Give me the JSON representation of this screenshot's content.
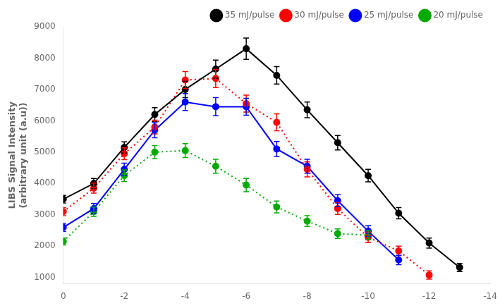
{
  "chart_data": {
    "type": "line",
    "y_label": "LIBS Signal Intensity\n(arbitrary unit (a.u))",
    "xlim": [
      0,
      -14
    ],
    "xticks": [
      0,
      -2,
      -4,
      -6,
      -8,
      -10,
      -12,
      -14
    ],
    "ylim": [
      800,
      9000
    ],
    "yticks": [
      1000,
      2000,
      3000,
      4000,
      5000,
      6000,
      7000,
      8000,
      9000
    ],
    "grid": false,
    "legend": "upper right",
    "series": [
      {
        "name": "35 mJ/pulse",
        "color": "#000000",
        "marker": "circle",
        "line_style": "solid",
        "x": [
          0,
          -1,
          -2,
          -3,
          -4,
          -5,
          -6,
          -7,
          -8,
          -9,
          -10,
          -11,
          -12,
          -13
        ],
        "values": [
          3500,
          4000,
          5150,
          6200,
          7000,
          7650,
          8300,
          7450,
          6350,
          5300,
          4250,
          3050,
          2100,
          1320
        ],
        "yerr": [
          120,
          160,
          180,
          220,
          260,
          290,
          340,
          280,
          250,
          230,
          200,
          180,
          160,
          130
        ]
      },
      {
        "name": "30 mJ/pulse",
        "color": "#ff0000",
        "marker": "circle",
        "line_style": "dotted",
        "x": [
          0,
          -1,
          -2,
          -3,
          -4,
          -5,
          -6,
          -7,
          -8,
          -9,
          -10,
          -11,
          -12
        ],
        "values": [
          3100,
          3850,
          4950,
          5800,
          7300,
          7350,
          6550,
          5950,
          4450,
          3200,
          2280,
          1850,
          1080
        ],
        "yerr": [
          130,
          160,
          190,
          220,
          270,
          290,
          270,
          270,
          240,
          190,
          170,
          150,
          130
        ]
      },
      {
        "name": "25 mJ/pulse",
        "color": "#0000ff",
        "marker": "circle",
        "line_style": "solid",
        "x": [
          0,
          -1,
          -2,
          -3,
          -4,
          -5,
          -6,
          -7,
          -8,
          -9,
          -10,
          -11
        ],
        "values": [
          2600,
          3200,
          4450,
          5700,
          6600,
          6450,
          6450,
          5100,
          4550,
          3450,
          2480,
          1560
        ],
        "yerr": [
          130,
          160,
          200,
          240,
          270,
          290,
          270,
          240,
          220,
          190,
          170,
          150
        ]
      },
      {
        "name": "20 mJ/pulse",
        "color": "#00aa00",
        "marker": "circle",
        "line_style": "dotted",
        "x": [
          0,
          -1,
          -2,
          -3,
          -4,
          -5,
          -6,
          -7,
          -8,
          -9,
          -10
        ],
        "values": [
          2150,
          3100,
          4250,
          5000,
          5050,
          4550,
          3950,
          3250,
          2800,
          2400,
          2350
        ],
        "yerr": [
          110,
          150,
          185,
          210,
          220,
          220,
          210,
          190,
          170,
          150,
          140
        ]
      }
    ]
  }
}
